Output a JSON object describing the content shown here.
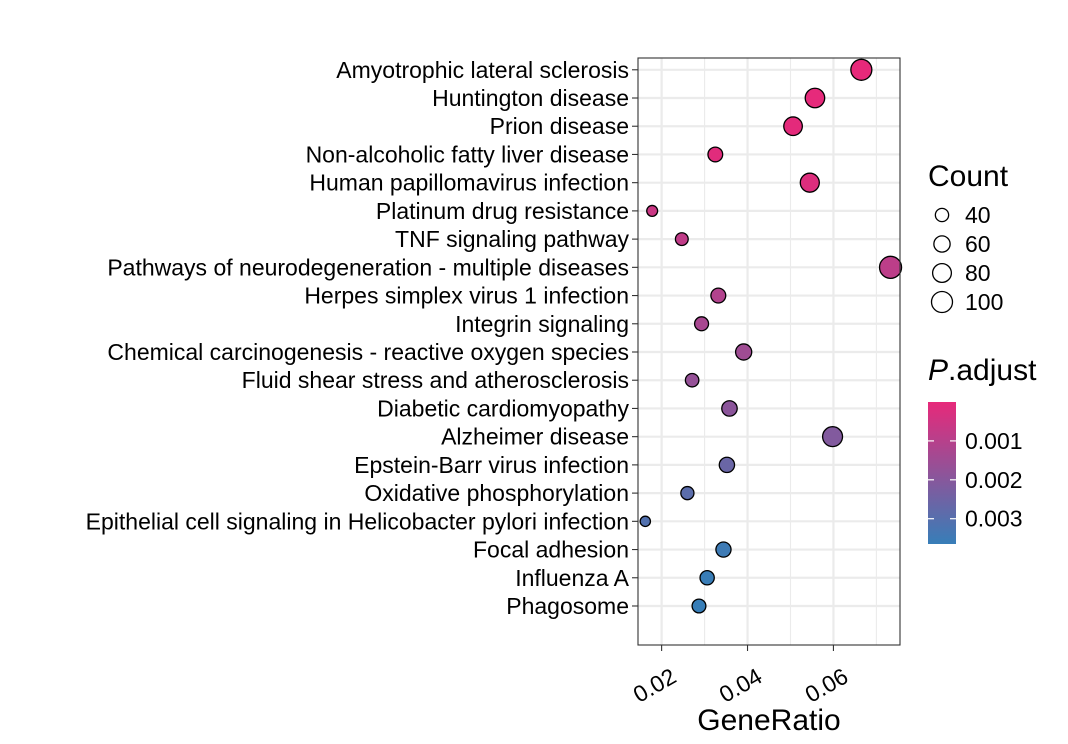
{
  "chart_data": {
    "type": "scatter",
    "xlabel": "GeneRatio",
    "ylabel": "",
    "xlim": [
      0.0145,
      0.0755
    ],
    "xticks": [
      0.02,
      0.04,
      0.06
    ],
    "xtick_labels": [
      "0.02",
      "0.04",
      "0.06"
    ],
    "grid": true,
    "categories": [
      "Amyotrophic lateral sclerosis",
      "Huntington disease",
      "Prion disease",
      "Non-alcoholic fatty liver disease",
      "Human papillomavirus infection",
      "Platinum drug resistance",
      "TNF signaling pathway",
      "Pathways of neurodegeneration - multiple diseases",
      "Herpes simplex virus 1 infection",
      "Integrin signaling",
      "Chemical carcinogenesis - reactive oxygen species",
      "Fluid shear stress and atherosclerosis",
      "Diabetic cardiomyopathy",
      "Alzheimer disease",
      "Epstein-Barr virus infection",
      "Oxidative phosphorylation",
      "Epithelial cell signaling in Helicobacter pylori infection",
      "Focal adhesion",
      "Influenza A",
      "Phagosome"
    ],
    "gene_ratio": [
      0.0665,
      0.0557,
      0.0506,
      0.0325,
      0.0545,
      0.0178,
      0.0247,
      0.0733,
      0.0332,
      0.0293,
      0.0391,
      0.0271,
      0.0358,
      0.0598,
      0.0352,
      0.026,
      0.0162,
      0.0344,
      0.0306,
      0.0287
    ],
    "count": [
      100,
      86,
      78,
      49,
      82,
      27,
      37,
      110,
      50,
      44,
      59,
      41,
      54,
      90,
      53,
      39,
      24,
      52,
      46,
      43
    ],
    "p_adjust": [
      1e-05,
      3e-05,
      6e-05,
      0.00012,
      0.0002,
      0.0006,
      0.0008,
      0.0009,
      0.0011,
      0.0013,
      0.0015,
      0.0017,
      0.0019,
      0.0021,
      0.0026,
      0.0029,
      0.0031,
      0.0035,
      0.0036,
      0.0037
    ],
    "size_legend": {
      "title": "Count",
      "values": [
        40,
        60,
        80,
        100
      ],
      "labels": [
        "40",
        "60",
        "80",
        "100"
      ]
    },
    "color_legend": {
      "title_italic": "P",
      "title_rest": ".adjust",
      "range": [
        0.0,
        0.00365
      ],
      "ticks": [
        0.001,
        0.002,
        0.003
      ],
      "tick_labels": [
        "0.001",
        "0.002",
        "0.003"
      ],
      "low_color": "#E7297A",
      "high_color": "#377EB8"
    }
  }
}
